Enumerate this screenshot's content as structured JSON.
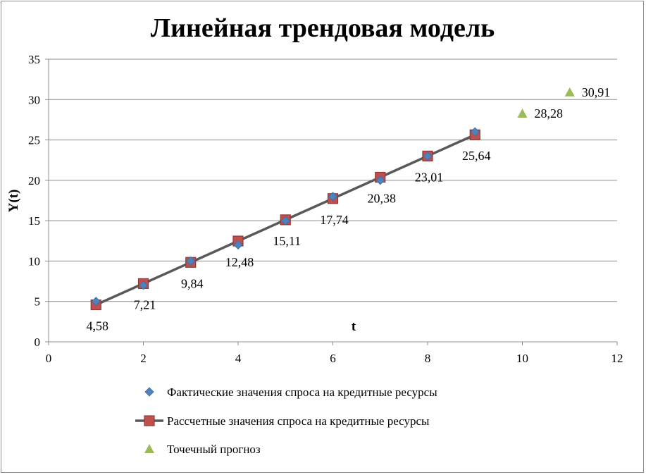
{
  "chart_data": {
    "type": "scatter",
    "title": "Линейная трендовая модель",
    "xlabel": "t",
    "ylabel": "Y(t)",
    "xlim": [
      0,
      12
    ],
    "ylim": [
      0,
      35
    ],
    "x_ticks": [
      0,
      2,
      4,
      6,
      8,
      10,
      12
    ],
    "y_ticks": [
      0,
      5,
      10,
      15,
      20,
      25,
      30,
      35
    ],
    "grid": "horizontal",
    "legend_position": "bottom",
    "series": [
      {
        "name": "Фактические значения спроса на кредитные ресурсы",
        "marker": "diamond",
        "color": "#4f81bd",
        "x": [
          1,
          2,
          3,
          4,
          5,
          6,
          7,
          8,
          9
        ],
        "y": [
          5.0,
          7.0,
          10.0,
          12.0,
          15.0,
          18.0,
          20.0,
          23.0,
          26.0
        ]
      },
      {
        "name": "Рассчетные значения спроса на кредитные ресурсы",
        "marker": "square",
        "line": true,
        "color": "#c0504d",
        "line_color": "#595959",
        "x": [
          1,
          2,
          3,
          4,
          5,
          6,
          7,
          8,
          9
        ],
        "y": [
          4.58,
          7.21,
          9.84,
          12.48,
          15.11,
          17.74,
          20.38,
          23.01,
          25.64
        ],
        "labels": [
          "4,58",
          "7,21",
          "9,84",
          "12,48",
          "15,11",
          "17,74",
          "20,38",
          "23,01",
          "25,64"
        ]
      },
      {
        "name": "Точечный прогноз",
        "marker": "triangle",
        "color": "#9bbb59",
        "x": [
          10,
          11
        ],
        "y": [
          28.28,
          30.91
        ],
        "labels": [
          "28,28",
          "30,91"
        ]
      }
    ]
  }
}
